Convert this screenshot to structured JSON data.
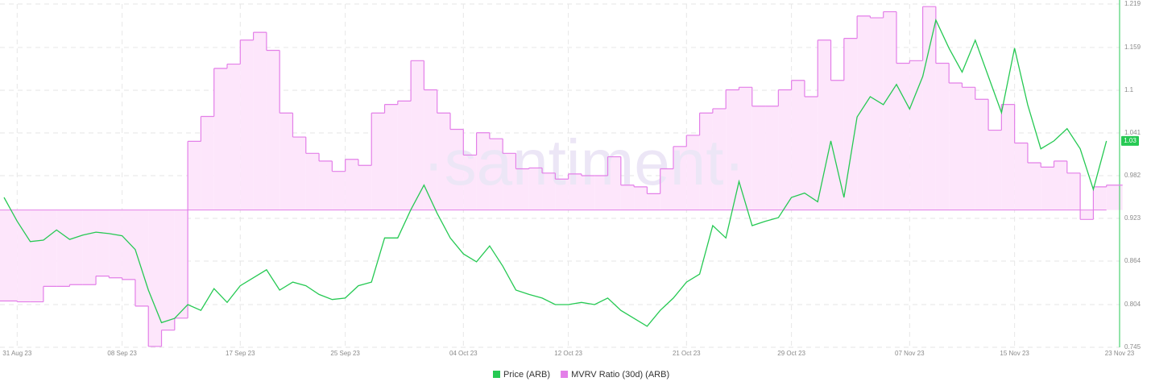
{
  "chart_data": {
    "type": "line",
    "watermark": "·santiment·",
    "x": [
      "2023-08-30",
      "2023-08-31",
      "2023-09-01",
      "2023-09-02",
      "2023-09-03",
      "2023-09-04",
      "2023-09-05",
      "2023-09-06",
      "2023-09-07",
      "2023-09-08",
      "2023-09-09",
      "2023-09-10",
      "2023-09-11",
      "2023-09-12",
      "2023-09-13",
      "2023-09-14",
      "2023-09-15",
      "2023-09-16",
      "2023-09-17",
      "2023-09-18",
      "2023-09-19",
      "2023-09-20",
      "2023-09-21",
      "2023-09-22",
      "2023-09-23",
      "2023-09-24",
      "2023-09-25",
      "2023-09-26",
      "2023-09-27",
      "2023-09-28",
      "2023-09-29",
      "2023-09-30",
      "2023-10-01",
      "2023-10-02",
      "2023-10-03",
      "2023-10-04",
      "2023-10-05",
      "2023-10-06",
      "2023-10-07",
      "2023-10-08",
      "2023-10-09",
      "2023-10-10",
      "2023-10-11",
      "2023-10-12",
      "2023-10-13",
      "2023-10-14",
      "2023-10-15",
      "2023-10-16",
      "2023-10-17",
      "2023-10-18",
      "2023-10-19",
      "2023-10-20",
      "2023-10-21",
      "2023-10-22",
      "2023-10-23",
      "2023-10-24",
      "2023-10-25",
      "2023-10-26",
      "2023-10-27",
      "2023-10-28",
      "2023-10-29",
      "2023-10-30",
      "2023-10-31",
      "2023-11-01",
      "2023-11-02",
      "2023-11-03",
      "2023-11-04",
      "2023-11-05",
      "2023-11-06",
      "2023-11-07",
      "2023-11-08",
      "2023-11-09",
      "2023-11-10",
      "2023-11-11",
      "2023-11-12",
      "2023-11-13",
      "2023-11-14",
      "2023-11-15",
      "2023-11-16",
      "2023-11-17",
      "2023-11-18",
      "2023-11-19",
      "2023-11-20",
      "2023-11-21",
      "2023-11-22"
    ],
    "xlim": [
      "2023-08-30",
      "2023-11-23"
    ],
    "xticks": [
      {
        "value": "2023-08-31",
        "label": "31 Aug 23"
      },
      {
        "value": "2023-09-08",
        "label": "08 Sep 23"
      },
      {
        "value": "2023-09-17",
        "label": "17 Sep 23"
      },
      {
        "value": "2023-09-25",
        "label": "25 Sep 23"
      },
      {
        "value": "2023-10-04",
        "label": "04 Oct 23"
      },
      {
        "value": "2023-10-12",
        "label": "12 Oct 23"
      },
      {
        "value": "2023-10-21",
        "label": "21 Oct 23"
      },
      {
        "value": "2023-10-29",
        "label": "29 Oct 23"
      },
      {
        "value": "2023-11-07",
        "label": "07 Nov 23"
      },
      {
        "value": "2023-11-15",
        "label": "15 Nov 23"
      },
      {
        "value": "2023-11-23",
        "label": "23 Nov 23"
      }
    ],
    "ylim": [
      0.745,
      1.219
    ],
    "yticks": [
      0.745,
      0.804,
      0.864,
      0.923,
      0.982,
      1.041,
      1.1,
      1.159,
      1.219
    ],
    "y2lim": [
      0.84,
      1.24
    ],
    "grid": true,
    "series": [
      {
        "name": "Price (ARB)",
        "color": "#26c953",
        "last_label": "1.03",
        "values": [
          0.952,
          0.919,
          0.891,
          0.893,
          0.907,
          0.894,
          0.9,
          0.904,
          0.902,
          0.899,
          0.88,
          0.824,
          0.779,
          0.785,
          0.804,
          0.796,
          0.826,
          0.807,
          0.83,
          0.841,
          0.852,
          0.824,
          0.835,
          0.83,
          0.818,
          0.811,
          0.813,
          0.83,
          0.835,
          0.896,
          0.896,
          0.935,
          0.969,
          0.93,
          0.896,
          0.874,
          0.863,
          0.885,
          0.857,
          0.824,
          0.818,
          0.813,
          0.804,
          0.804,
          0.807,
          0.804,
          0.813,
          0.796,
          0.785,
          0.774,
          0.796,
          0.813,
          0.835,
          0.846,
          0.913,
          0.896,
          0.974,
          0.913,
          0.919,
          0.924,
          0.952,
          0.958,
          0.946,
          1.03,
          0.952,
          1.063,
          1.091,
          1.08,
          1.108,
          1.074,
          1.119,
          1.197,
          1.158,
          1.125,
          1.169,
          1.119,
          1.069,
          1.158,
          1.08,
          1.019,
          1.03,
          1.047,
          1.019,
          0.963,
          1.03
        ]
      },
      {
        "name": "MVRV Ratio (30d) (ARB)",
        "color": "#e37fe8",
        "fill": "#fde6fb",
        "axis": "y2",
        "baseline": 1,
        "values": [
          0.894,
          0.893,
          0.893,
          0.911,
          0.911,
          0.913,
          0.913,
          0.923,
          0.921,
          0.919,
          0.888,
          0.841,
          0.86,
          0.874,
          1.08,
          1.109,
          1.165,
          1.17,
          1.198,
          1.207,
          1.186,
          1.113,
          1.085,
          1.066,
          1.057,
          1.045,
          1.059,
          1.052,
          1.113,
          1.123,
          1.127,
          1.174,
          1.14,
          1.113,
          1.094,
          1.064,
          1.09,
          1.083,
          1.066,
          1.048,
          1.049,
          1.043,
          1.036,
          1.042,
          1.04,
          1.04,
          1.062,
          1.029,
          1.027,
          1.019,
          1.048,
          1.074,
          1.087,
          1.113,
          1.118,
          1.14,
          1.143,
          1.121,
          1.121,
          1.14,
          1.151,
          1.132,
          1.198,
          1.151,
          1.2,
          1.226,
          1.224,
          1.231,
          1.171,
          1.174,
          1.237,
          1.171,
          1.148,
          1.143,
          1.129,
          1.093,
          1.123,
          1.078,
          1.055,
          1.05,
          1.057,
          1.043,
          0.989,
          1.027,
          1.029
        ]
      }
    ]
  }
}
